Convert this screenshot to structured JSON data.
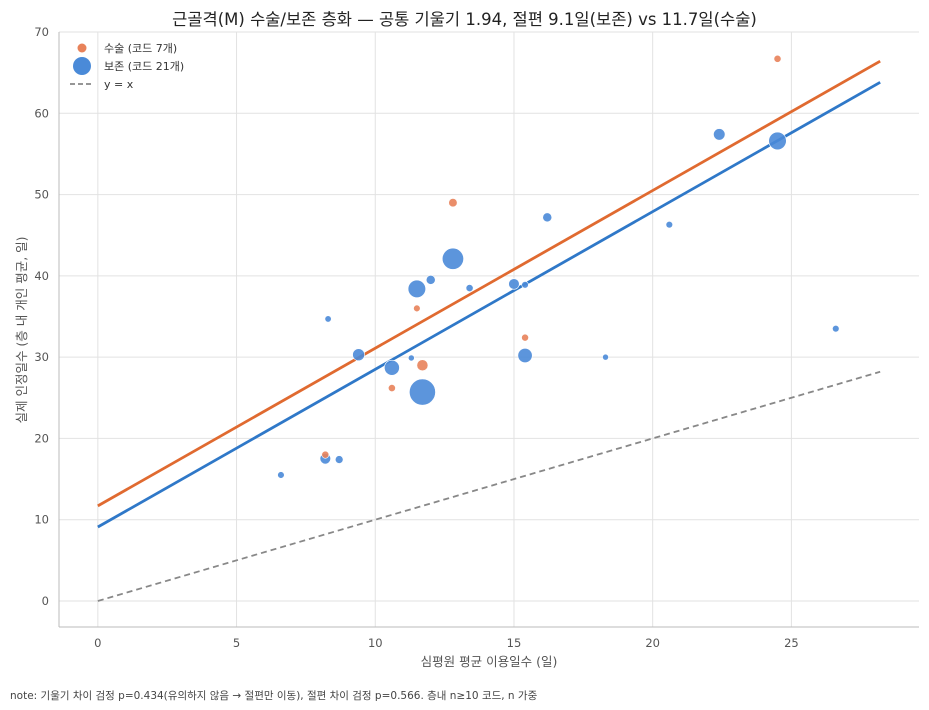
{
  "note": "note: 기울기 차이 검정 p=0.434(유의하지 않음 → 절편만 이동), 절편 차이 검정 p=0.566. 층내 n≥10 코드, n 가중",
  "chart_data": {
    "type": "scatter",
    "title": "근골격(M) 수술/보존 층화 — 공통 기울기 1.94, 절편 9.1일(보존) vs 11.7일(수술)",
    "xlabel": "심평원 평균 이용일수 (일)",
    "ylabel": "실제 인정일수 (층 내 개인 평균, 일)",
    "xlim": [
      -1.4,
      29.6
    ],
    "ylim": [
      -3.2,
      70
    ],
    "xticks": [
      0,
      5,
      10,
      15,
      20,
      25
    ],
    "yticks": [
      0,
      10,
      20,
      30,
      40,
      50,
      60,
      70
    ],
    "grid": true,
    "legend_position": "top-left",
    "legend": [
      "수술 (코드 7개)",
      "보존 (코드 21개)",
      "y = x"
    ],
    "colors": {
      "surgery": "#e8825a",
      "conservative": "#4a8ad8",
      "surgery_line": "#e06a30",
      "conservative_line": "#2f78c8",
      "identity_line": "#888888"
    },
    "series": [
      {
        "name": "수술 (코드 7개)",
        "points": [
          {
            "x": 24.5,
            "y": 66.7,
            "n": 25
          },
          {
            "x": 12.8,
            "y": 49.0,
            "n": 35
          },
          {
            "x": 11.5,
            "y": 36.0,
            "n": 22
          },
          {
            "x": 15.4,
            "y": 32.4,
            "n": 24
          },
          {
            "x": 11.7,
            "y": 29.0,
            "n": 60
          },
          {
            "x": 10.6,
            "y": 26.2,
            "n": 25
          },
          {
            "x": 8.2,
            "y": 18.0,
            "n": 25
          }
        ]
      },
      {
        "name": "보존 (코드 21개)",
        "points": [
          {
            "x": 24.5,
            "y": 56.6,
            "n": 150
          },
          {
            "x": 22.4,
            "y": 57.4,
            "n": 65
          },
          {
            "x": 16.2,
            "y": 47.2,
            "n": 40
          },
          {
            "x": 20.6,
            "y": 46.3,
            "n": 22
          },
          {
            "x": 12.8,
            "y": 42.1,
            "n": 220
          },
          {
            "x": 12.0,
            "y": 39.5,
            "n": 40
          },
          {
            "x": 11.5,
            "y": 38.4,
            "n": 150
          },
          {
            "x": 13.4,
            "y": 38.5,
            "n": 25
          },
          {
            "x": 15.0,
            "y": 39.0,
            "n": 55
          },
          {
            "x": 15.4,
            "y": 38.9,
            "n": 22
          },
          {
            "x": 8.3,
            "y": 34.7,
            "n": 20
          },
          {
            "x": 26.6,
            "y": 33.5,
            "n": 22
          },
          {
            "x": 9.4,
            "y": 30.3,
            "n": 70
          },
          {
            "x": 15.4,
            "y": 30.2,
            "n": 100
          },
          {
            "x": 11.3,
            "y": 29.9,
            "n": 18
          },
          {
            "x": 18.3,
            "y": 30.0,
            "n": 18
          },
          {
            "x": 10.6,
            "y": 28.7,
            "n": 110
          },
          {
            "x": 11.7,
            "y": 25.7,
            "n": 330
          },
          {
            "x": 8.2,
            "y": 17.5,
            "n": 55
          },
          {
            "x": 8.7,
            "y": 17.4,
            "n": 30
          },
          {
            "x": 6.6,
            "y": 15.5,
            "n": 22
          }
        ]
      }
    ],
    "fit_lines": [
      {
        "name": "수술",
        "slope": 1.94,
        "intercept": 11.7,
        "x_range": [
          0,
          28.2
        ]
      },
      {
        "name": "보존",
        "slope": 1.94,
        "intercept": 9.1,
        "x_range": [
          0,
          28.2
        ]
      },
      {
        "name": "y = x",
        "slope": 1.0,
        "intercept": 0,
        "x_range": [
          0,
          28.2
        ]
      }
    ]
  }
}
